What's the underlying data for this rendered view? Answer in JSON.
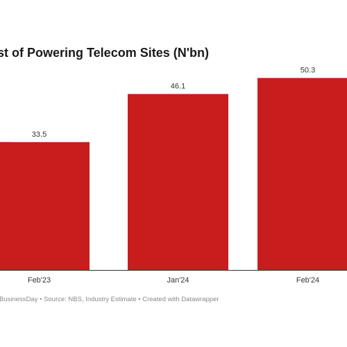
{
  "chart_data": {
    "type": "bar",
    "title": "st of Powering Telecom Sites (N'bn)",
    "categories": [
      "",
      "Feb'23",
      "Jan'24",
      "Feb'24"
    ],
    "values": [
      33.5,
      33.5,
      46.1,
      50.3
    ],
    "value_labels": [
      "",
      "33.5",
      "46.1",
      "50.3"
    ],
    "bar_color": "#c71d1d",
    "ylim": [
      0,
      60
    ],
    "grid": false,
    "xlabel": "",
    "ylabel": ""
  },
  "footer": "BusinessDay • Source: NBS, Industry Estimate • Created with Datawrapper"
}
